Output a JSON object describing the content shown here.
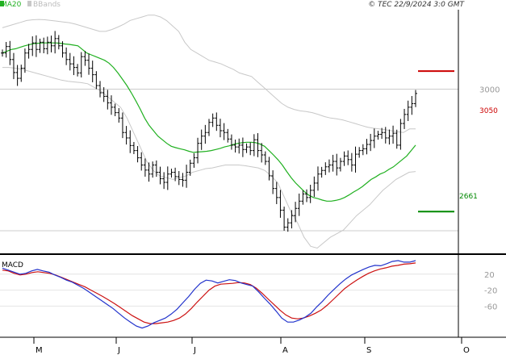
{
  "header": {
    "ma_label": "MA20",
    "bb_label": "BBands",
    "source": "© TEC 22/9/2024 3:0 GMT"
  },
  "panels": {
    "macd_label": "MACD"
  },
  "levels": {
    "resistance_label": "3050",
    "support_label": "2661"
  },
  "colors": {
    "background": "#ffffff",
    "price_bars": "#000000",
    "ma20": "#20b020",
    "bbands": "#c8c8c8",
    "resistance": "#cc0000",
    "support": "#008800",
    "macd_line": "#2233cc",
    "signal_line": "#cc1111",
    "axis": "#000000",
    "grid": "#cccccc",
    "dim_text": "#999999"
  },
  "chart_data": [
    {
      "type": "ohlc",
      "title": "",
      "overlays": [
        "MA20",
        "BBands"
      ],
      "grid": true,
      "x_tick_labels": [
        "M",
        "J",
        "J",
        "A",
        "S",
        "O"
      ],
      "y_ticks": [
        {
          "value": 3000,
          "label": "3000"
        }
      ],
      "ylim": [
        2550,
        3220
      ],
      "horizontal_levels": [
        {
          "value": 3050,
          "label": "3050",
          "color": "#cc0000"
        },
        {
          "value": 2661,
          "label": "2661",
          "color": "#008800"
        }
      ],
      "series": [
        {
          "kind": "close",
          "values": [
            3100,
            3118,
            3082,
            3046,
            3030,
            3058,
            3100,
            3110,
            3128,
            3110,
            3130,
            3112,
            3130,
            3120,
            3140,
            3120,
            3100,
            3082,
            3070,
            3060,
            3045,
            3090,
            3080,
            3058,
            3040,
            3010,
            2990,
            2980,
            2962,
            2950,
            2935,
            2920,
            2880,
            2865,
            2844,
            2830,
            2810,
            2790,
            2776,
            2765,
            2790,
            2770,
            2752,
            2742,
            2765,
            2770,
            2758,
            2750,
            2748,
            2770,
            2795,
            2810,
            2850,
            2870,
            2880,
            2908,
            2920,
            2900,
            2885,
            2880,
            2862,
            2845,
            2840,
            2845,
            2833,
            2840,
            2830,
            2860,
            2830,
            2818,
            2800,
            2760,
            2725,
            2700,
            2665,
            2618,
            2630,
            2650,
            2670,
            2690,
            2710,
            2700,
            2720,
            2740,
            2765,
            2775,
            2785,
            2790,
            2800,
            2782,
            2800,
            2815,
            2805,
            2790,
            2820,
            2830,
            2835,
            2847,
            2858,
            2870,
            2875,
            2880,
            2865,
            2870,
            2878,
            2845,
            2905,
            2930,
            2950,
            2960,
            2988
          ]
        },
        {
          "kind": "ma20",
          "values": [
            3100,
            3105,
            3110,
            3112,
            3116,
            3120,
            3123,
            3126,
            3127,
            3128,
            3128,
            3128,
            3128,
            3127,
            3125,
            3124,
            3122,
            3120,
            3110,
            3100,
            3095,
            3090,
            3085,
            3080,
            3072,
            3060,
            3045,
            3028,
            3010,
            2990,
            2968,
            2945,
            2920,
            2900,
            2885,
            2870,
            2860,
            2850,
            2842,
            2838,
            2835,
            2832,
            2828,
            2825,
            2826,
            2827,
            2828,
            2830,
            2833,
            2836,
            2840,
            2843,
            2847,
            2850,
            2852,
            2853,
            2853,
            2852,
            2848,
            2842,
            2830,
            2818,
            2805,
            2790,
            2772,
            2755,
            2740,
            2728,
            2716,
            2706,
            2700,
            2697,
            2693,
            2690,
            2690,
            2692,
            2695,
            2700,
            2707,
            2715,
            2722,
            2730,
            2740,
            2750,
            2757,
            2765,
            2770,
            2778,
            2785,
            2795,
            2805,
            2815,
            2830,
            2845
          ]
        },
        {
          "kind": "bb_upper",
          "values": [
            3170,
            3175,
            3180,
            3185,
            3190,
            3192,
            3193,
            3192,
            3190,
            3188,
            3186,
            3184,
            3180,
            3175,
            3170,
            3165,
            3160,
            3160,
            3165,
            3172,
            3180,
            3190,
            3195,
            3200,
            3205,
            3205,
            3200,
            3190,
            3175,
            3160,
            3130,
            3110,
            3100,
            3090,
            3080,
            3075,
            3070,
            3062,
            3055,
            3045,
            3040,
            3035,
            3020,
            3005,
            2990,
            2975,
            2960,
            2950,
            2944,
            2940,
            2938,
            2935,
            2930,
            2924,
            2920,
            2918,
            2915,
            2910,
            2905,
            2900,
            2895,
            2892,
            2890,
            2888,
            2885,
            2882,
            2880,
            2890,
            2890
          ]
        },
        {
          "kind": "bb_lower",
          "values": [
            3060,
            3060,
            3058,
            3055,
            3050,
            3045,
            3040,
            3035,
            3030,
            3025,
            3022,
            3020,
            3018,
            3015,
            3005,
            2995,
            2980,
            2965,
            2950,
            2920,
            2880,
            2840,
            2800,
            2775,
            2760,
            2755,
            2750,
            2755,
            2760,
            2770,
            2775,
            2780,
            2782,
            2786,
            2790,
            2790,
            2790,
            2788,
            2785,
            2782,
            2775,
            2760,
            2740,
            2700,
            2660,
            2630,
            2590,
            2565,
            2560,
            2575,
            2590,
            2600,
            2610,
            2630,
            2650,
            2665,
            2680,
            2700,
            2720,
            2735,
            2750,
            2760,
            2770,
            2772
          ]
        }
      ]
    },
    {
      "type": "line",
      "title": "MACD",
      "y_ticks": [
        {
          "value": 20,
          "label": "20"
        },
        {
          "value": -20,
          "label": "-20"
        },
        {
          "value": -60,
          "label": "-60"
        }
      ],
      "ylim": [
        -130,
        60
      ],
      "series": [
        {
          "kind": "macd",
          "values": [
            35,
            30,
            25,
            20,
            22,
            28,
            32,
            28,
            25,
            18,
            12,
            5,
            0,
            -8,
            -16,
            -26,
            -36,
            -46,
            -56,
            -66,
            -78,
            -90,
            -100,
            -110,
            -115,
            -110,
            -102,
            -96,
            -90,
            -80,
            -68,
            -52,
            -36,
            -18,
            -3,
            5,
            3,
            -2,
            2,
            6,
            4,
            -2,
            -6,
            -10,
            -24,
            -40,
            -55,
            -72,
            -90,
            -100,
            -100,
            -95,
            -88,
            -78,
            -62,
            -48,
            -32,
            -18,
            -4,
            8,
            18,
            25,
            32,
            38,
            42,
            41,
            46,
            52,
            54,
            50,
            50,
            54
          ]
        },
        {
          "kind": "signal",
          "values": [
            30,
            28,
            22,
            18,
            20,
            24,
            26,
            24,
            22,
            18,
            12,
            6,
            0,
            -6,
            -12,
            -20,
            -28,
            -36,
            -45,
            -54,
            -64,
            -74,
            -84,
            -92,
            -100,
            -104,
            -104,
            -102,
            -100,
            -96,
            -90,
            -80,
            -66,
            -50,
            -35,
            -20,
            -10,
            -5,
            -4,
            -3,
            -1,
            -2,
            -6,
            -15,
            -28,
            -42,
            -56,
            -70,
            -82,
            -90,
            -92,
            -90,
            -85,
            -78,
            -70,
            -58,
            -44,
            -30,
            -16,
            -5,
            5,
            14,
            22,
            28,
            33,
            36,
            40,
            42,
            45,
            46,
            48
          ]
        }
      ]
    }
  ]
}
